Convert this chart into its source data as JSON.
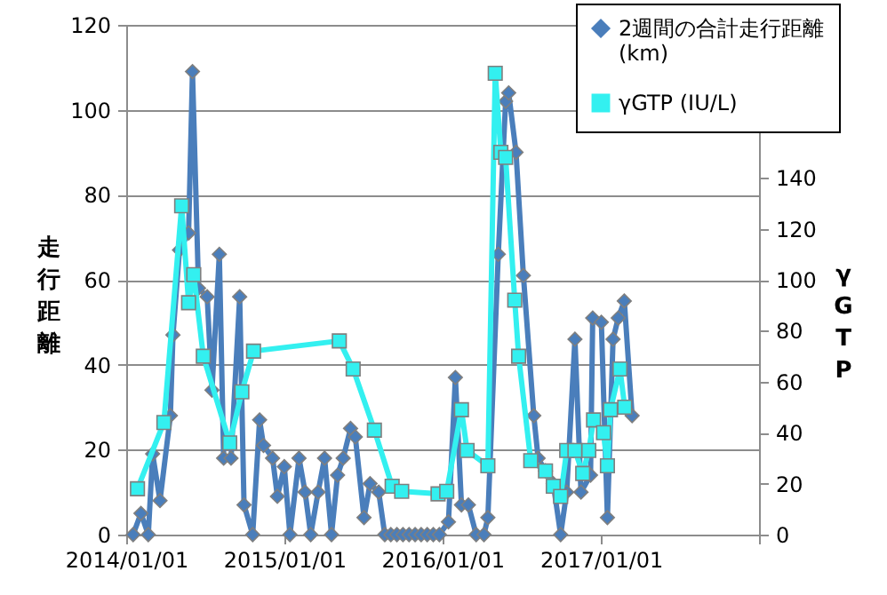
{
  "chart_data": {
    "type": "line",
    "ylabel": "走行距離",
    "y2label": "γGTP",
    "xlim": [
      "2014-01-01",
      "2018-01-01"
    ],
    "xticks": [
      {
        "value": "2014-01-01",
        "label": "2014/01/01"
      },
      {
        "value": "2015-01-01",
        "label": "2015/01/01"
      },
      {
        "value": "2016-01-01",
        "label": "2016/01/01"
      },
      {
        "value": "2017-01-01",
        "label": "2017/01/01"
      },
      {
        "value": "2018-01-01",
        "label": null
      }
    ],
    "ylim": [
      0,
      120
    ],
    "yticks": [
      0,
      20,
      40,
      60,
      80,
      100,
      120
    ],
    "y2lim": [
      0,
      200
    ],
    "y2ticks": [
      0,
      20,
      40,
      60,
      80,
      100,
      120,
      140
    ],
    "grid": "y",
    "legend": "top right",
    "series": [
      {
        "name": "2週間の合計走行距離\n(km)",
        "color": "#4a7ebb",
        "marker": "diamond",
        "x": [
          "2014-01-17",
          "2014-02-04",
          "2014-02-21",
          "2014-03-03",
          "2014-03-20",
          "2014-04-13",
          "2014-04-19",
          "2014-05-04",
          "2014-05-25",
          "2014-06-03",
          "2014-06-17",
          "2014-07-07",
          "2014-07-18",
          "2014-08-04",
          "2014-08-14",
          "2014-08-31",
          "2014-09-20",
          "2014-09-30",
          "2014-10-20",
          "2014-11-05",
          "2014-11-14",
          "2014-12-05",
          "2014-12-16",
          "2015-01-01",
          "2015-01-14",
          "2015-02-04",
          "2015-02-18",
          "2015-03-03",
          "2015-03-20",
          "2015-04-04",
          "2015-04-20",
          "2015-05-04",
          "2015-05-17",
          "2015-06-03",
          "2015-06-14",
          "2015-07-04",
          "2015-07-18",
          "2015-08-07",
          "2015-08-21",
          "2015-09-04",
          "2015-09-18",
          "2015-10-02",
          "2015-10-16",
          "2015-10-30",
          "2015-11-13",
          "2015-11-27",
          "2015-12-11",
          "2015-12-25",
          "2016-01-15",
          "2016-01-31",
          "2016-02-14",
          "2016-03-01",
          "2016-03-19",
          "2016-04-06",
          "2016-04-15",
          "2016-05-09",
          "2016-05-26",
          "2016-06-02",
          "2016-06-19",
          "2016-07-06",
          "2016-07-30",
          "2016-08-09",
          "2016-08-26",
          "2016-09-13",
          "2016-09-30",
          "2016-10-14",
          "2016-11-02",
          "2016-11-16",
          "2016-12-08",
          "2016-12-13",
          "2017-01-02",
          "2017-01-16",
          "2017-01-29",
          "2017-02-10",
          "2017-02-24",
          "2017-03-14"
        ],
        "values": [
          0,
          5,
          0,
          19,
          8,
          28,
          47,
          67,
          71,
          109,
          58,
          56,
          34,
          66,
          18,
          18,
          56,
          7,
          0,
          27,
          21,
          18,
          9,
          16,
          0,
          18,
          10,
          0,
          10,
          18,
          0,
          14,
          18,
          25,
          23,
          4,
          12,
          10,
          0,
          0,
          0,
          0,
          0,
          0,
          0,
          0,
          0,
          0,
          3,
          37,
          7,
          7,
          0,
          0,
          4,
          66,
          102,
          104,
          90,
          61,
          28,
          18,
          15,
          12,
          0,
          10,
          46,
          10,
          14,
          51,
          50,
          4,
          46,
          51,
          55,
          28
        ]
      },
      {
        "name": "γGTP (IU/L)",
        "color": "#33f0f0",
        "marker": "square",
        "axis": "y2",
        "x": [
          "2014-01-27",
          "2014-03-29",
          "2014-05-09",
          "2014-05-25",
          "2014-06-06",
          "2014-06-28",
          "2014-08-28",
          "2014-09-25",
          "2014-10-22",
          "2015-05-08",
          "2015-06-09",
          "2015-07-28",
          "2015-09-07",
          "2015-09-29",
          "2015-12-22",
          "2016-01-11",
          "2016-02-14",
          "2016-02-27",
          "2016-04-15",
          "2016-05-02",
          "2016-05-15",
          "2016-05-26",
          "2016-06-16",
          "2016-06-25",
          "2016-07-23",
          "2016-08-26",
          "2016-09-13",
          "2016-09-30",
          "2016-10-14",
          "2016-11-02",
          "2016-11-20",
          "2016-12-04",
          "2016-12-15",
          "2017-01-07",
          "2017-01-16",
          "2017-01-23",
          "2017-02-14",
          "2017-02-25"
        ],
        "values": [
          18,
          44,
          129,
          91,
          102,
          70,
          36,
          56,
          72,
          76,
          65,
          41,
          19,
          17,
          16,
          17,
          49,
          33,
          27,
          181,
          150,
          148,
          92,
          70,
          29,
          25,
          19,
          15,
          33,
          33,
          24,
          33,
          45,
          40,
          27,
          49,
          65,
          50
        ]
      }
    ]
  }
}
